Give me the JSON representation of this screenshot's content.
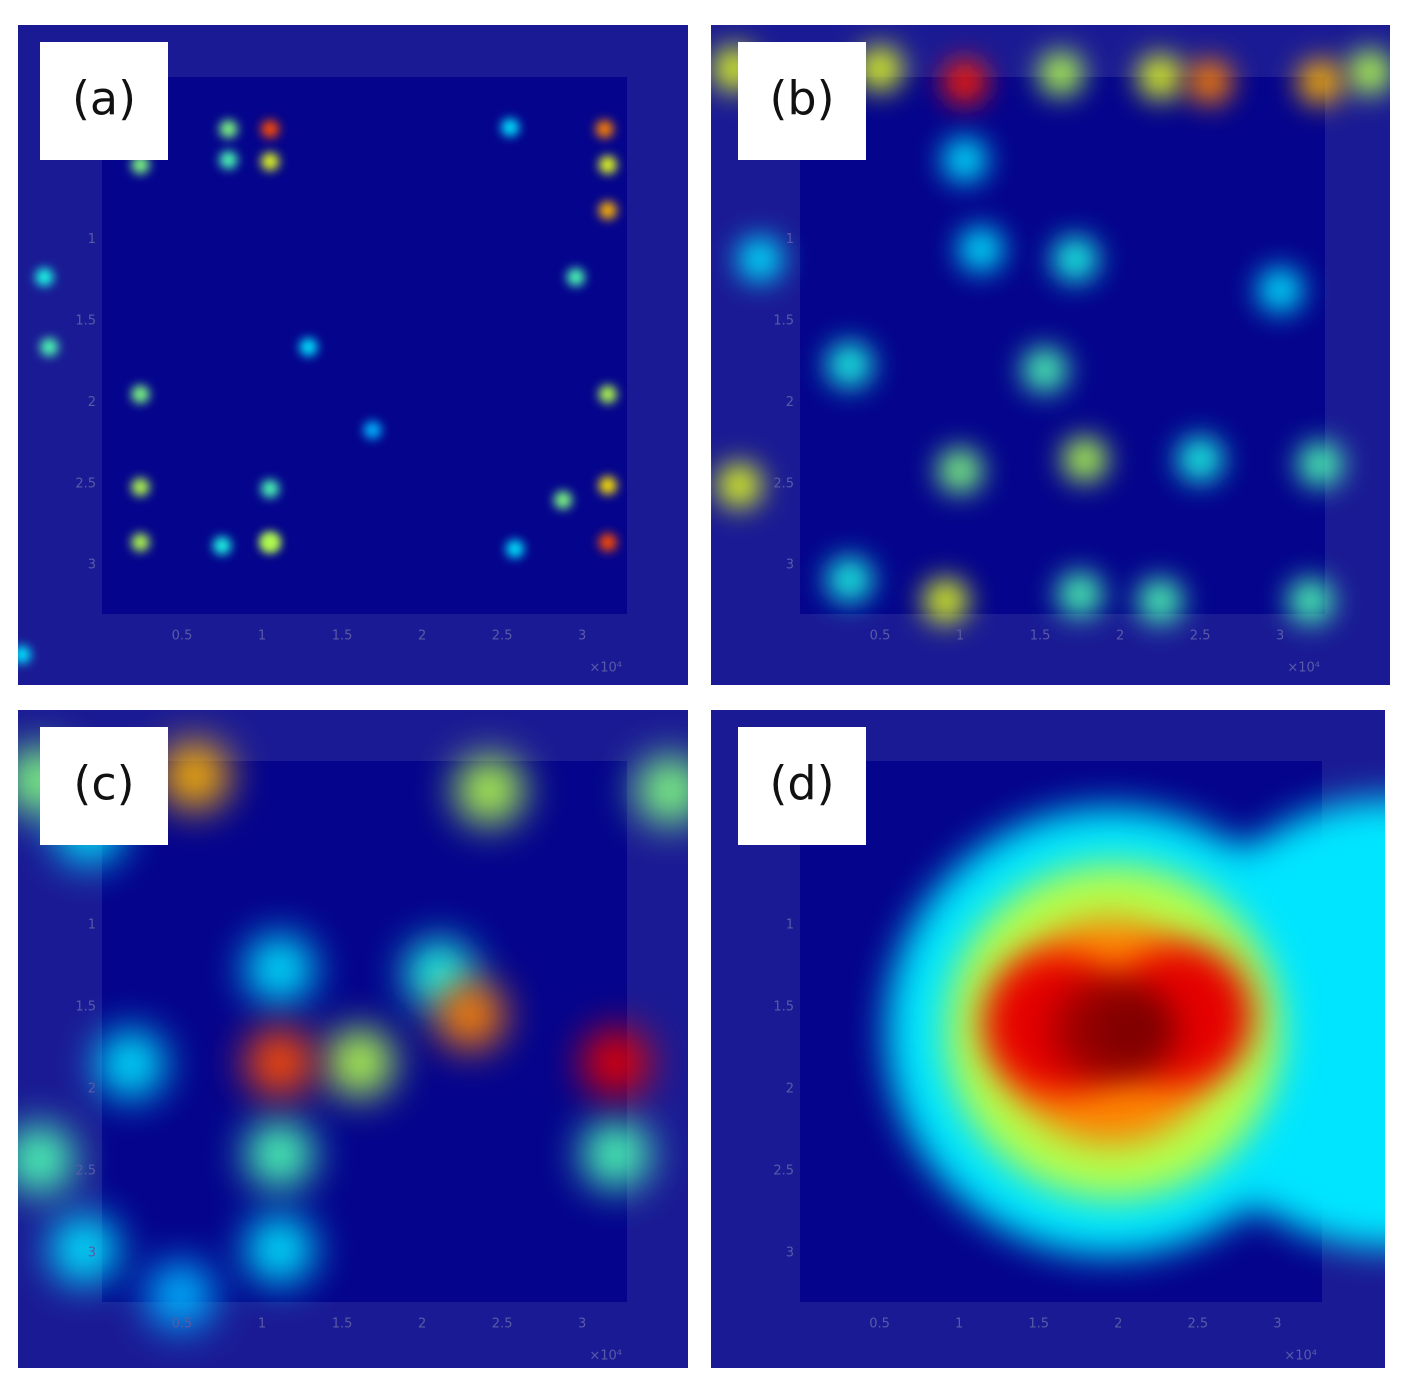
{
  "chart_data": [
    {
      "type": "heatmap",
      "title": "(a)",
      "colormap": "jet",
      "x_label": "×10⁴",
      "xlim": [
        0,
        3.28
      ],
      "ylim": [
        0,
        3.3
      ],
      "xticks": [
        0.5,
        1,
        1.5,
        2,
        2.5,
        3
      ],
      "yticks": [
        1,
        1.5,
        2,
        2.5,
        3
      ],
      "x": [
        1.69,
        1.29,
        2.58,
        -0.5,
        2.55,
        -0.36,
        0.75,
        1.05,
        0.79,
        0.24,
        -0.33,
        2.96,
        1.05,
        0.24,
        2.88,
        0.79,
        0.24,
        3.16,
        1.05,
        0.24,
        1.05,
        3.16,
        3.16,
        3.16,
        3.14,
        1.05,
        3.16
      ],
      "y": [
        2.17,
        1.66,
        2.9,
        3.55,
        0.31,
        1.23,
        2.88,
        2.53,
        0.51,
        0.54,
        1.66,
        1.23,
        0.52,
        1.95,
        2.6,
        0.32,
        2.52,
        1.95,
        2.86,
        2.86,
        2.86,
        0.54,
        2.51,
        0.82,
        0.32,
        0.32,
        2.86
      ],
      "values": [
        0.3,
        0.35,
        0.35,
        0.35,
        0.35,
        0.4,
        0.4,
        0.45,
        0.45,
        0.5,
        0.45,
        0.45,
        0.6,
        0.5,
        0.5,
        0.5,
        0.55,
        0.55,
        0.55,
        0.55,
        0.55,
        0.6,
        0.65,
        0.7,
        0.75,
        0.8,
        0.8
      ]
    },
    {
      "type": "heatmap",
      "title": "(b)",
      "colormap": "jet",
      "x_label": "×10⁴",
      "xlim": [
        0,
        3.28
      ],
      "ylim": [
        0,
        3.3
      ],
      "xticks": [
        0.5,
        1,
        1.5,
        2,
        2.5,
        3
      ],
      "yticks": [
        1,
        1.5,
        2,
        2.5,
        3
      ],
      "x": [
        1.13,
        1.03,
        -0.25,
        3.0,
        0.31,
        2.5,
        0.31,
        1.72,
        1.53,
        3.25,
        1.75,
        2.25,
        3.19,
        0.5,
        1.0,
        1.78,
        1.63,
        3.56,
        -0.38,
        2.25,
        0.91,
        -0.41,
        3.25,
        2.56,
        1.03
      ],
      "y": [
        1.06,
        0.51,
        1.12,
        1.31,
        1.77,
        2.35,
        3.09,
        1.12,
        1.8,
        2.38,
        3.18,
        3.22,
        3.22,
        -0.05,
        2.42,
        2.35,
        -0.02,
        -0.03,
        2.51,
        0,
        3.22,
        -0.05,
        0.03,
        0.03,
        0.03
      ],
      "values": [
        0.35,
        0.35,
        0.35,
        0.35,
        0.4,
        0.4,
        0.4,
        0.4,
        0.45,
        0.45,
        0.45,
        0.45,
        0.45,
        0.6,
        0.5,
        0.55,
        0.55,
        0.55,
        0.6,
        0.6,
        0.6,
        0.6,
        0.7,
        0.75,
        0.85
      ]
    },
    {
      "type": "heatmap",
      "title": "(c)",
      "colormap": "jet",
      "x_label": "×10⁴",
      "xlim": [
        0,
        3.28
      ],
      "ylim": [
        0,
        3.3
      ],
      "xticks": [
        0.5,
        1,
        1.5,
        2,
        2.5,
        3
      ],
      "yticks": [
        1,
        1.5,
        2,
        2.5,
        3
      ],
      "x": [
        0.49,
        1.11,
        0.18,
        -0.11,
        -0.08,
        1.11,
        2.11,
        1.11,
        3.21,
        -0.39,
        -0.39,
        3.55,
        2.42,
        1.61,
        0.58,
        2.3,
        1.11,
        3.21
      ],
      "y": [
        3.26,
        1.27,
        1.85,
        2.98,
        0.42,
        2.98,
        1.3,
        2.4,
        2.4,
        2.43,
        0.12,
        0.18,
        0.18,
        1.84,
        0.09,
        1.55,
        1.84,
        1.84
      ],
      "values": [
        0.3,
        0.35,
        0.35,
        0.35,
        0.35,
        0.35,
        0.4,
        0.45,
        0.45,
        0.45,
        0.5,
        0.5,
        0.55,
        0.55,
        0.7,
        0.75,
        0.8,
        0.9
      ]
    },
    {
      "type": "heatmap",
      "title": "(d)",
      "colormap": "jet",
      "x_label": "×10⁴",
      "xlim": [
        0,
        3.28
      ],
      "ylim": [
        0,
        3.3
      ],
      "xticks": [
        0.5,
        1,
        1.5,
        2,
        2.5,
        3
      ],
      "yticks": [
        1,
        1.5,
        2,
        2.5,
        3
      ],
      "x": [
        3.7,
        1.95,
        1.97,
        1.95,
        1.6,
        2.4,
        1.9,
        2.1
      ],
      "y": [
        1.6,
        1.65,
        1.65,
        1.65,
        1.6,
        1.55,
        1.64,
        1.64
      ],
      "values": [
        0.35,
        0.35,
        0.55,
        0.75,
        0.9,
        0.9,
        0.97,
        1.0
      ]
    }
  ]
}
